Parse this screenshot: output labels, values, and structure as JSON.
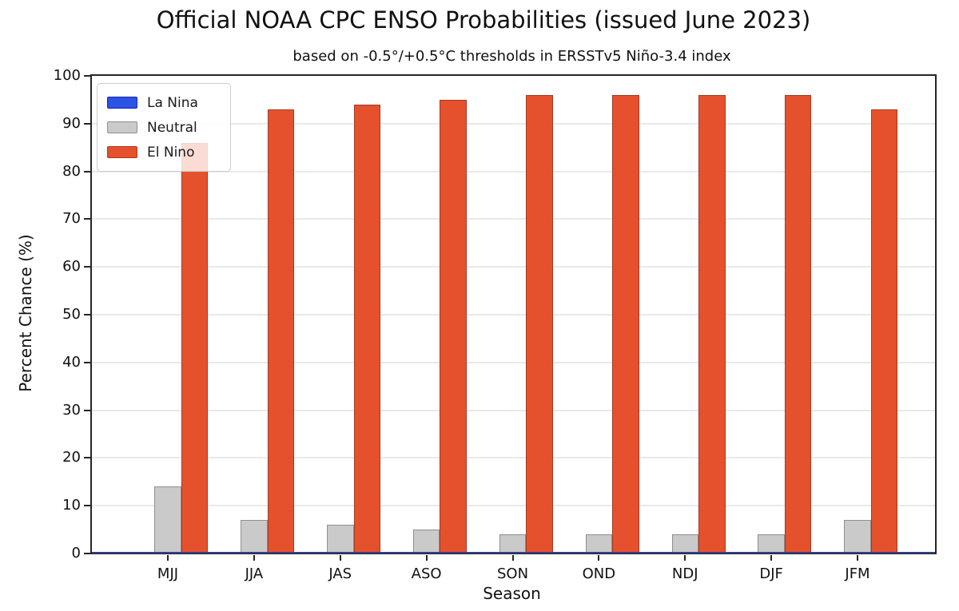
{
  "chart_data": {
    "type": "bar",
    "title": "Official NOAA CPC ENSO Probabilities (issued June 2023)",
    "subtitle": "based on -0.5°/+0.5°C thresholds in ERSSTv5 Niño-3.4 index",
    "xlabel": "Season",
    "ylabel": "Percent Chance (%)",
    "categories": [
      "MJJ",
      "JJA",
      "JAS",
      "ASO",
      "SON",
      "OND",
      "NDJ",
      "DJF",
      "JFM"
    ],
    "series": [
      {
        "name": "La Nina",
        "color": "#2D53E5",
        "edge_color": "#1726AE",
        "values": [
          0,
          0,
          0,
          0,
          0,
          0,
          0,
          0,
          0
        ]
      },
      {
        "name": "Neutral",
        "color": "#CACACA",
        "edge_color": "#8F8F8F",
        "values": [
          14,
          7,
          6,
          5,
          4,
          4,
          4,
          4,
          7
        ]
      },
      {
        "name": "El Nino",
        "color": "#E6512D",
        "edge_color": "#A33A20",
        "values": [
          86,
          93,
          94,
          95,
          96,
          96,
          96,
          96,
          93
        ]
      }
    ],
    "ylim": [
      0,
      100
    ],
    "yticks": [
      0,
      10,
      20,
      30,
      40,
      50,
      60,
      70,
      80,
      90,
      100
    ],
    "grid": true,
    "legend_position": "upper-left",
    "baseline_color": "#323F8C",
    "spine_color": "#262626",
    "grid_color": "#E9E9E9"
  }
}
